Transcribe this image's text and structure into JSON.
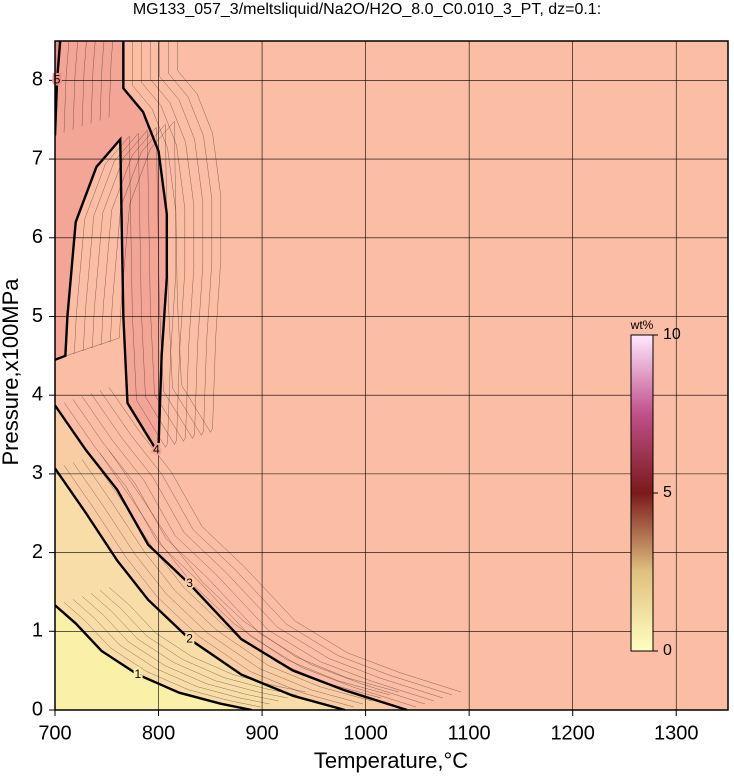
{
  "chart_data": {
    "type": "contour",
    "title": "MG133_057_3/meltsliquid/Na2O/H2O_8.0_C0.010_3_PT, dz=0.1:",
    "x_label": "Temperature,°C",
    "y_label": "Pressure,x100MPa",
    "xlim": [
      700,
      1350
    ],
    "ylim": [
      0,
      8.5
    ],
    "xticks": [
      700,
      800,
      900,
      1000,
      1100,
      1200,
      1300
    ],
    "yticks": [
      0,
      1,
      2,
      3,
      4,
      5,
      6,
      7,
      8
    ],
    "grid": true,
    "background": "#fbbda3",
    "contours": [
      {
        "level": 3,
        "fill": "#f9cda3",
        "x": [
          700,
          730,
          760,
          790,
          830,
          880,
          930,
          980,
          1040
        ],
        "y": [
          3.87,
          3.3,
          2.8,
          2.1,
          1.6,
          0.9,
          0.5,
          0.25,
          0
        ]
      },
      {
        "level": 2,
        "fill": "#f8dea6",
        "x": [
          700,
          730,
          760,
          790,
          830,
          880,
          930,
          980
        ],
        "y": [
          3.07,
          2.5,
          1.9,
          1.4,
          0.9,
          0.45,
          0.18,
          0
        ]
      },
      {
        "level": 1,
        "fill": "#fbf0a8",
        "x": [
          700,
          720,
          745,
          780,
          820,
          860,
          890
        ],
        "y": [
          1.33,
          1.1,
          0.75,
          0.45,
          0.22,
          0.08,
          0
        ]
      },
      {
        "level": 4,
        "fill": "#f3a596",
        "x": [
          766,
          766,
          785,
          800,
          808,
          808,
          803,
          800,
          798,
          770,
          766,
          763,
          740,
          720,
          712,
          710,
          700
        ],
        "y": [
          8.5,
          7.9,
          7.6,
          7.1,
          6.3,
          5.5,
          4.5,
          3.35,
          3.3,
          3.9,
          5.0,
          7.25,
          6.9,
          6.2,
          5.0,
          4.5,
          4.45
        ]
      },
      {
        "level": 5,
        "fill": "#e98f86",
        "x": [
          700,
          702,
          705
        ],
        "y": [
          7.3,
          8.0,
          8.5
        ]
      }
    ],
    "colorbar": {
      "label": "wt%",
      "lim": [
        0,
        10
      ],
      "ticks": [
        0,
        5,
        10
      ],
      "colormap": [
        "#ffffc0",
        "#e0c080",
        "#7a1a1a",
        "#c0508a",
        "#ffe8ff"
      ]
    }
  }
}
